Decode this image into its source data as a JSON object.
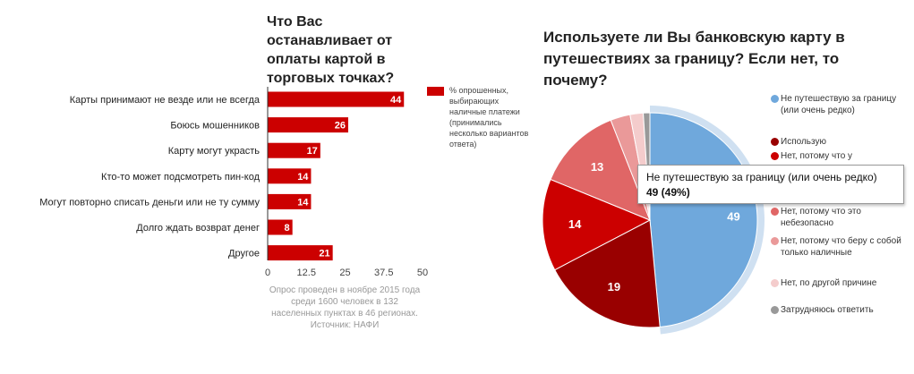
{
  "chart_data": [
    {
      "type": "bar",
      "orientation": "horizontal",
      "title": "Что Вас останавливает от оплаты картой в торговых точках?",
      "categories": [
        "Карты принимают не везде или не всегда",
        "Боюсь мошенников",
        "Карту могут украсть",
        "Кто-то может подсмотреть пин-код",
        "Могут повторно списать деньги или не ту сумму",
        "Долго ждать возврат денег",
        "Другое"
      ],
      "series": [
        {
          "name": "% опрошенных, выбирающих наличные платежи (принимались несколько вариантов ответа)",
          "values": [
            44,
            26,
            17,
            14,
            14,
            8,
            21
          ],
          "color": "#cc0000"
        }
      ],
      "xlim": [
        0,
        50
      ],
      "xticks": [
        "0",
        "12.5",
        "25",
        "37.5",
        "50"
      ],
      "legend": "right",
      "grid": false,
      "note": "Опрос проведен в ноябре 2015 года среди 1600 человек в 132 населенных пунктах в 46 регионах. Источник: НАФИ"
    },
    {
      "type": "pie",
      "title": "Используете ли Вы банковскую карту в путешествиях за границу? Если нет, то почему?",
      "slices": [
        {
          "label": "Не путешествую за границу (или очень редко)",
          "value": 49,
          "color": "#6fa8dc"
        },
        {
          "label": "Использую",
          "value": 19,
          "color": "#990000"
        },
        {
          "label": "Нет, потому что у",
          "value": 14,
          "color": "#cc0000"
        },
        {
          "label": "Нет, потому что это небезопасно",
          "value": 13,
          "color": "#e06666"
        },
        {
          "label": "Нет, потому что беру с собой только наличные",
          "value": 3,
          "color": "#ea9999"
        },
        {
          "label": "Нет, по другой причине",
          "value": 2,
          "color": "#f4cccc"
        },
        {
          "label": "Затрудняюсь ответить",
          "value": 1,
          "color": "#999999"
        }
      ],
      "data_labels": [
        "49",
        "19",
        "14",
        "13"
      ],
      "legend": "right",
      "tooltip": {
        "label": "Не путешествую за границу (или очень редко)",
        "value": "49 (49%)"
      }
    }
  ]
}
